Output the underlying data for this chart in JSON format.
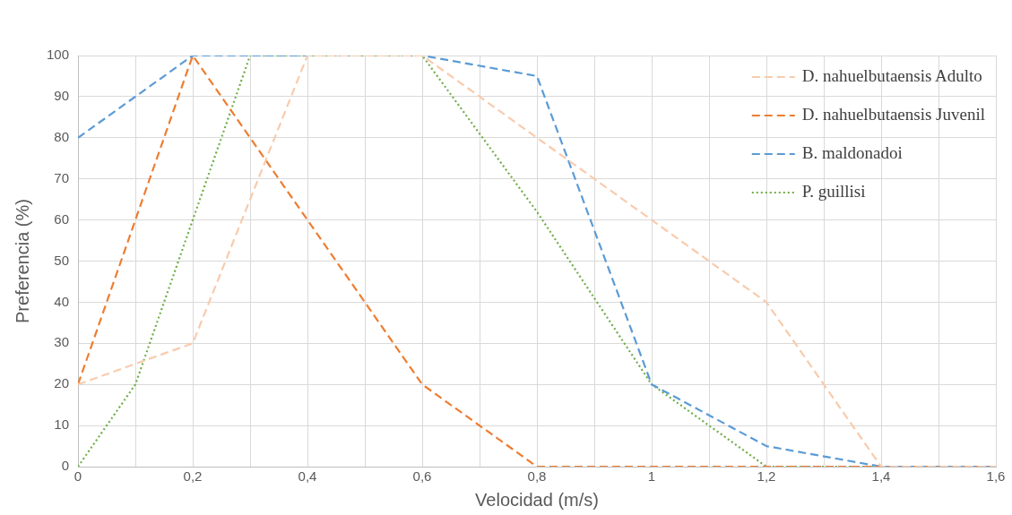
{
  "chart_data": {
    "type": "line",
    "xlabel": "Velocidad (m/s)",
    "ylabel": "Preferencia (%)",
    "xlim": [
      0,
      1.6
    ],
    "xticks": [
      0,
      {
        "value": 0.1,
        "label": null
      },
      {
        "value": 0.2,
        "label": "0,2"
      },
      {
        "value": 0.3,
        "label": null
      },
      {
        "value": 0.4,
        "label": "0,4"
      },
      {
        "value": 0.5,
        "label": null
      },
      {
        "value": 0.6,
        "label": "0,6"
      },
      {
        "value": 0.7,
        "label": null
      },
      {
        "value": 0.8,
        "label": "0,8"
      },
      {
        "value": 0.9,
        "label": null
      },
      1,
      {
        "value": 1.1,
        "label": null
      },
      {
        "value": 1.2,
        "label": "1,2"
      },
      {
        "value": 1.3,
        "label": null
      },
      {
        "value": 1.4,
        "label": "1,4"
      },
      {
        "value": 1.5,
        "label": null
      },
      {
        "value": 1.6,
        "label": "1,6"
      }
    ],
    "ylim": [
      0,
      100
    ],
    "yticks": [
      0,
      10,
      20,
      30,
      40,
      50,
      60,
      70,
      80,
      90,
      100
    ],
    "grid": true,
    "legend": "top right",
    "marker": "none",
    "series": [
      {
        "name": "D. nahuelbutaensis Adulto",
        "color": "#f8cbad",
        "line_style": "dashed",
        "x": [
          0,
          0.1,
          0.2,
          0.4,
          0.6,
          0.8,
          1,
          1.2,
          1.4,
          1.6
        ],
        "values": [
          20,
          25,
          30,
          100,
          100,
          80,
          60,
          40,
          0,
          0
        ]
      },
      {
        "name": "D. nahuelbutaensis Juvenil",
        "color": "#ed7d31",
        "line_style": "dashed",
        "x": [
          0,
          0.2,
          0.4,
          0.6,
          0.8,
          1,
          1.2,
          1.4,
          1.6
        ],
        "values": [
          20,
          100,
          60,
          20,
          0,
          0,
          0,
          0,
          0
        ]
      },
      {
        "name": "B. maldonadoi",
        "color": "#5b9bd5",
        "line_style": "dashed",
        "x": [
          0,
          0.2,
          0.6,
          0.8,
          1,
          1.2,
          1.4,
          1.6
        ],
        "values": [
          80,
          100,
          100,
          95,
          20,
          5,
          0,
          0
        ]
      },
      {
        "name": "P. guillisi",
        "color": "#70ad47",
        "line_style": "dotted",
        "x": [
          0,
          0.1,
          0.2,
          0.3,
          0.6,
          0.8,
          1,
          1.2,
          1.4,
          1.6
        ],
        "values": [
          0,
          20,
          60,
          100,
          100,
          62,
          20,
          0,
          0,
          0
        ]
      }
    ]
  }
}
